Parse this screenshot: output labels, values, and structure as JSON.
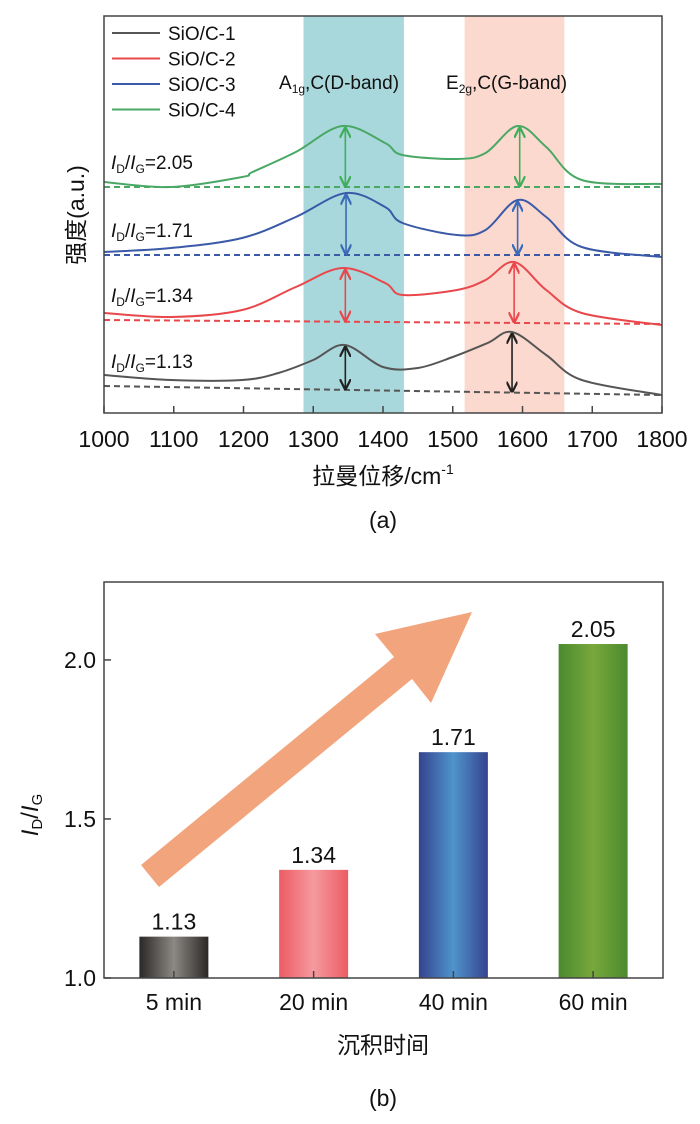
{
  "chart_data": [
    {
      "id": "a",
      "type": "line",
      "caption": "(a)",
      "xlabel": "拉曼位移/cm",
      "xlabel_sup": "-1",
      "ylabel": "强度(a.u.)",
      "xlim": [
        1000,
        1800
      ],
      "ylim": [
        0,
        397
      ],
      "xticks": [
        1000,
        1100,
        1200,
        1300,
        1400,
        1500,
        1600,
        1700,
        1800
      ],
      "grid": false,
      "legend": "top-left",
      "bands": [
        {
          "name": "D-band",
          "range": [
            1286,
            1430
          ],
          "color": "#a9d8dc",
          "label": {
            "main": "A",
            "sub": "1g",
            "rest": ",C(D-band)"
          }
        },
        {
          "name": "G-band",
          "range": [
            1517,
            1660
          ],
          "color": "#fbd9cf",
          "label": {
            "main": "E",
            "sub": "2g",
            "rest": ",C(G-band)"
          }
        }
      ],
      "series": [
        {
          "name": "SiO/C-1",
          "color": "#555555",
          "arrow_color": "#222222",
          "x": [
            1000,
            1096,
            1198,
            1250,
            1300,
            1345,
            1400,
            1450,
            1500,
            1550,
            1585,
            1634,
            1685,
            1800
          ],
          "y": [
            38,
            33,
            33,
            40,
            53,
            68,
            46,
            45,
            56,
            70,
            81,
            58,
            33,
            18
          ],
          "baseline": [
            27,
            18
          ],
          "d_peak": 1346,
          "g_peak": 1585,
          "ratio": "1.13"
        },
        {
          "name": "SiO/C-2",
          "color": "#e8474b",
          "arrow_color": "#e8474b",
          "x": [
            1000,
            1096,
            1198,
            1275,
            1342,
            1403,
            1428,
            1506,
            1547,
            1588,
            1634,
            1685,
            1800
          ],
          "y": [
            100,
            96,
            103,
            126,
            145,
            130,
            118,
            123,
            133,
            151,
            123,
            100,
            88
          ],
          "baseline": [
            93,
            89
          ],
          "d_peak": 1346,
          "g_peak": 1588,
          "ratio": "1.34"
        },
        {
          "name": "SiO/C-3",
          "color": "#3a5aa8",
          "arrow_color": "#3a6ab8",
          "x": [
            1000,
            1096,
            1198,
            1275,
            1347,
            1403,
            1428,
            1506,
            1547,
            1593,
            1634,
            1685,
            1800
          ],
          "y": [
            161,
            165,
            175,
            196,
            220,
            206,
            190,
            178,
            183,
            213,
            196,
            166,
            156
          ],
          "baseline": [
            158,
            158
          ],
          "d_peak": 1347,
          "g_peak": 1593,
          "ratio": "1.71"
        },
        {
          "name": "SiO/C-4",
          "color": "#4aa865",
          "arrow_color": "#3eae5a",
          "x": [
            1000,
            1096,
            1198,
            1213,
            1275,
            1342,
            1403,
            1428,
            1506,
            1547,
            1593,
            1634,
            1685,
            1800
          ],
          "y": [
            231,
            226,
            236,
            241,
            261,
            287,
            270,
            258,
            254,
            260,
            287,
            266,
            233,
            229
          ],
          "baseline": [
            226,
            226
          ],
          "d_peak": 1346,
          "g_peak": 1596,
          "ratio": "2.05"
        }
      ],
      "ratio_prefix": "ID/IG="
    },
    {
      "id": "b",
      "type": "bar",
      "caption": "(b)",
      "title": "",
      "xlabel": "沉积时间",
      "ylabel": "ID/IG",
      "ylim": [
        1.0,
        2.245
      ],
      "yticks": [
        "1.0",
        "1.5",
        "2.0"
      ],
      "categories": [
        "5 min",
        "20 min",
        "40 min",
        "60 min"
      ],
      "values": [
        1.13,
        1.34,
        1.71,
        2.05
      ],
      "value_labels": [
        "1.13",
        "1.34",
        "1.71",
        "2.05"
      ],
      "colors": [
        {
          "edge": "#2a2826",
          "center": "#8c8884"
        },
        {
          "edge": "#ec5c62",
          "center": "#f59aa0"
        },
        {
          "edge": "#35438f",
          "center": "#4f94cc"
        },
        {
          "edge": "#4a8a2e",
          "center": "#78a83c"
        }
      ],
      "trend_arrow_color": "#f2a47c"
    }
  ]
}
